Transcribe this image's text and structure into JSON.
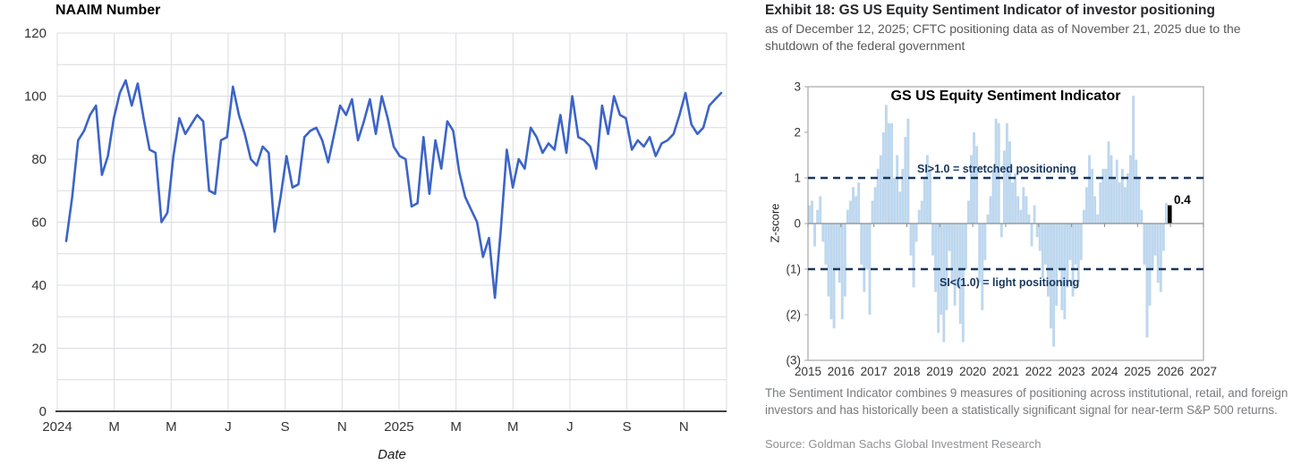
{
  "exhibit": {
    "title": "Exhibit 18: GS US Equity Sentiment Indicator of investor positioning",
    "subtitle": "as of December 12, 2025; CFTC positioning data as of November 21, 2025 due to the shutdown of the federal government",
    "footnote": "The Sentiment Indicator combines 9 measures of positioning across institutional, retail, and foreign investors and has historically been a statistically significant signal for near-term S&P 500 returns.",
    "source": "Source: Goldman Sachs Global Investment Research"
  },
  "chart_data": [
    {
      "type": "line",
      "title": "NAAIM Number",
      "xlabel": "Date",
      "ylabel": "",
      "ylim": [
        0,
        120
      ],
      "yticks": [
        0,
        20,
        40,
        60,
        80,
        100,
        120
      ],
      "xtick_labels": [
        "2024",
        "M",
        "M",
        "J",
        "S",
        "N",
        "2025",
        "M",
        "M",
        "J",
        "S",
        "N"
      ],
      "x_span_months": 23.5,
      "x_range": [
        "Jan 2024",
        "Dec 2025"
      ],
      "frequency": "weekly",
      "line_color": "#3c64c8",
      "grid_color": "#dadce0",
      "values": [
        54,
        68,
        86,
        89,
        94,
        97,
        75,
        81,
        93,
        101,
        105,
        97,
        104,
        93,
        83,
        82,
        60,
        63,
        81,
        93,
        88,
        91,
        94,
        92,
        70,
        69,
        86,
        87,
        103,
        94,
        88,
        80,
        78,
        84,
        82,
        57,
        68,
        81,
        71,
        72,
        87,
        89,
        90,
        86,
        79,
        88,
        97,
        94,
        99,
        86,
        92,
        99,
        88,
        100,
        93,
        84,
        81,
        80,
        65,
        66,
        87,
        69,
        86,
        77,
        92,
        89,
        76,
        68,
        64,
        60,
        49,
        55,
        36,
        58,
        83,
        71,
        80,
        77,
        90,
        87,
        82,
        85,
        83,
        94,
        82,
        100,
        87,
        86,
        84,
        77,
        97,
        88,
        100,
        94,
        93,
        83,
        86,
        84,
        87,
        81,
        85,
        86,
        88,
        94,
        101,
        91,
        88,
        90,
        97,
        99,
        101
      ]
    },
    {
      "type": "bar",
      "title": "GS US Equity Sentiment Indicator",
      "ylabel": "Z-score",
      "ylim": [
        -3,
        3
      ],
      "ytick_labels": [
        "3",
        "2",
        "1",
        "0",
        "(1)",
        "(2)",
        "(3)"
      ],
      "xtick_labels": [
        "2015",
        "2016",
        "2017",
        "2018",
        "2019",
        "2020",
        "2021",
        "2022",
        "2023",
        "2024",
        "2025",
        "2026",
        "2027"
      ],
      "x_range": [
        "Jan 2015",
        "Dec 2025"
      ],
      "frequency": "monthly (approximated from weekly bars)",
      "bar_color": "#bdd7ee",
      "reference_lines": [
        {
          "y": 1,
          "label": "SI>1.0 = stretched positioning",
          "color": "#17375e",
          "style": "dashed"
        },
        {
          "y": -1,
          "label": "SI<(1.0) = light positioning",
          "color": "#17375e",
          "style": "dashed"
        }
      ],
      "latest": {
        "value": 0.4,
        "label": "0.4",
        "color": "#000000"
      },
      "values": [
        0.4,
        0.5,
        -0.5,
        0.3,
        0.6,
        -0.4,
        -0.9,
        -1.6,
        -2.1,
        -2.3,
        -1.0,
        -1.3,
        -2.1,
        -1.6,
        0.3,
        0.5,
        0.8,
        0.6,
        0.9,
        -0.9,
        -1.5,
        -1.0,
        -2.0,
        0.5,
        0.8,
        1.2,
        1.5,
        2.0,
        2.6,
        2.2,
        2.2,
        1.0,
        1.5,
        0.7,
        1.2,
        1.9,
        2.3,
        -0.7,
        -1.4,
        -0.4,
        0.3,
        0.5,
        1.0,
        1.5,
        1.2,
        -0.7,
        -1.5,
        -2.4,
        -2.0,
        -2.6,
        -1.9,
        -0.6,
        -1.3,
        -1.8,
        -1.4,
        -2.2,
        -2.6,
        -1.0,
        0.5,
        1.5,
        2.0,
        1.7,
        -1.3,
        -1.9,
        -0.8,
        0.2,
        0.6,
        1.2,
        2.3,
        2.2,
        -0.3,
        1.6,
        2.2,
        1.8,
        0.9,
        1.1,
        0.6,
        0.3,
        0.8,
        0.6,
        0.2,
        -0.5,
        0.4,
        -0.3,
        -0.6,
        -1.2,
        -0.9,
        -1.6,
        -2.3,
        -2.7,
        -1.8,
        -1.0,
        -1.9,
        -2.1,
        -1.4,
        -0.8,
        -1.6,
        -0.9,
        -1.3,
        -0.8,
        0.3,
        0.8,
        1.5,
        1.2,
        0.6,
        0.2,
        0.9,
        1.2,
        1.2,
        1.8,
        1.5,
        1.0,
        1.4,
        0.9,
        1.2,
        0.8,
        1.1,
        1.5,
        2.8,
        1.4,
        1.0,
        0.3,
        -0.9,
        -2.5,
        -1.8,
        -1.0,
        -0.7,
        -1.3,
        -1.5,
        -0.6,
        0.45,
        0.4
      ]
    }
  ]
}
